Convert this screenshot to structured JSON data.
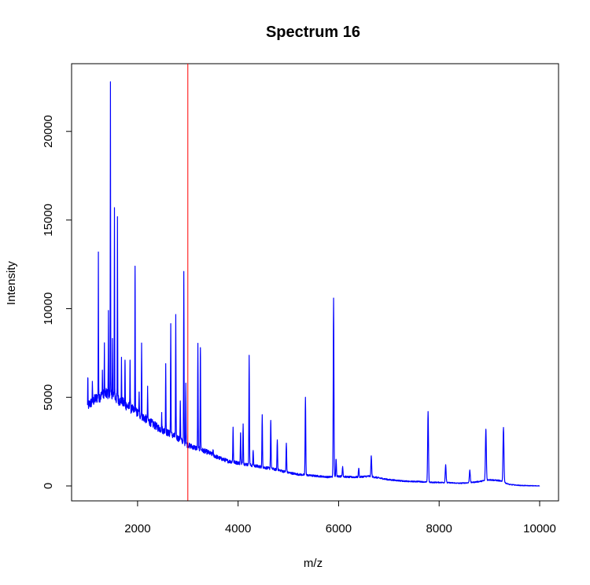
{
  "chart_data": {
    "type": "line",
    "title": "Spectrum 16",
    "xlabel": "m/z",
    "ylabel": "Intensity",
    "xlim": [
      1000,
      10000
    ],
    "ylim": [
      0,
      22800
    ],
    "xticks": [
      2000,
      4000,
      6000,
      8000,
      10000
    ],
    "yticks": [
      0,
      5000,
      10000,
      15000,
      20000
    ],
    "xtick_labels": [
      "2000",
      "4000",
      "6000",
      "8000",
      "10000"
    ],
    "ytick_labels": [
      "0",
      "5000",
      "10000",
      "15000",
      "20000"
    ],
    "grid": false,
    "legend": "none",
    "series_color": "#0000ff",
    "vline": {
      "x": 3000,
      "color": "#ff0000"
    },
    "baseline": [
      [
        1000,
        4500
      ],
      [
        1200,
        5000
      ],
      [
        1400,
        5200
      ],
      [
        1600,
        4900
      ],
      [
        1800,
        4500
      ],
      [
        2000,
        4100
      ],
      [
        2200,
        3700
      ],
      [
        2400,
        3300
      ],
      [
        2600,
        3000
      ],
      [
        2800,
        2700
      ],
      [
        3000,
        2300
      ],
      [
        3200,
        2100
      ],
      [
        3400,
        1900
      ],
      [
        3600,
        1600
      ],
      [
        3800,
        1400
      ],
      [
        4000,
        1300
      ],
      [
        4200,
        1200
      ],
      [
        4400,
        1100
      ],
      [
        4600,
        1000
      ],
      [
        4800,
        900
      ],
      [
        5000,
        750
      ],
      [
        5200,
        650
      ],
      [
        5400,
        600
      ],
      [
        5600,
        550
      ],
      [
        5800,
        500
      ],
      [
        6000,
        550
      ],
      [
        6200,
        500
      ],
      [
        6400,
        500
      ],
      [
        6600,
        550
      ],
      [
        6800,
        450
      ],
      [
        7000,
        350
      ],
      [
        7200,
        300
      ],
      [
        7400,
        250
      ],
      [
        7600,
        250
      ],
      [
        7800,
        200
      ],
      [
        8000,
        200
      ],
      [
        8200,
        180
      ],
      [
        8400,
        150
      ],
      [
        8600,
        180
      ],
      [
        8800,
        250
      ],
      [
        9000,
        350
      ],
      [
        9200,
        300
      ],
      [
        9400,
        80
      ],
      [
        9600,
        30
      ],
      [
        9800,
        10
      ],
      [
        10000,
        0
      ]
    ],
    "peaks": [
      [
        1010,
        6100
      ],
      [
        1100,
        5900
      ],
      [
        1220,
        13200
      ],
      [
        1300,
        6500
      ],
      [
        1340,
        8000
      ],
      [
        1420,
        9900
      ],
      [
        1460,
        22800
      ],
      [
        1500,
        8300
      ],
      [
        1540,
        15700
      ],
      [
        1600,
        15000
      ],
      [
        1680,
        7000
      ],
      [
        1750,
        7100
      ],
      [
        1850,
        7100
      ],
      [
        1950,
        12400
      ],
      [
        2030,
        5300
      ],
      [
        2080,
        8000
      ],
      [
        2200,
        5400
      ],
      [
        2480,
        4000
      ],
      [
        2560,
        6900
      ],
      [
        2660,
        9100
      ],
      [
        2760,
        9500
      ],
      [
        2850,
        4800
      ],
      [
        2920,
        12000
      ],
      [
        2960,
        5800
      ],
      [
        3200,
        8000
      ],
      [
        3250,
        7800
      ],
      [
        3500,
        2000
      ],
      [
        3900,
        3300
      ],
      [
        4050,
        3000
      ],
      [
        4100,
        3500
      ],
      [
        4220,
        7300
      ],
      [
        4300,
        2000
      ],
      [
        4480,
        4000
      ],
      [
        4650,
        3700
      ],
      [
        4780,
        2600
      ],
      [
        4960,
        2400
      ],
      [
        5340,
        5000
      ],
      [
        5900,
        10600
      ],
      [
        5950,
        1500
      ],
      [
        6080,
        1100
      ],
      [
        6400,
        1000
      ],
      [
        6650,
        1700
      ],
      [
        7780,
        4200
      ],
      [
        8130,
        1200
      ],
      [
        8610,
        900
      ],
      [
        8930,
        3200
      ],
      [
        9280,
        3300
      ]
    ]
  }
}
